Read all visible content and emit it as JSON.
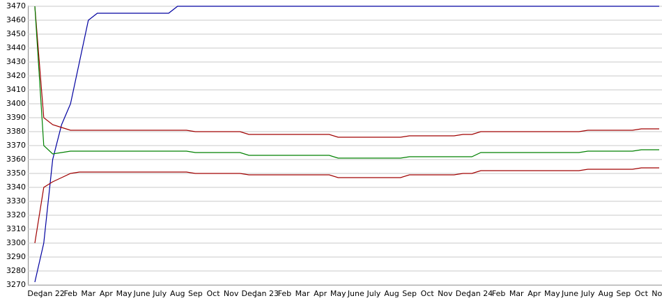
{
  "chart_data": {
    "type": "line",
    "categories": [
      "Dec",
      null,
      "Jan 22",
      null,
      "Feb",
      null,
      "Mar",
      null,
      "Apr",
      null,
      "May",
      null,
      "June",
      null,
      "July",
      null,
      "Aug",
      null,
      "Sep",
      null,
      "Oct",
      null,
      "Nov",
      null,
      "Dec",
      null,
      "Jan 23",
      null,
      "Feb",
      null,
      "Mar",
      null,
      "Apr",
      null,
      "May",
      null,
      "June",
      null,
      "July",
      null,
      "Aug",
      null,
      "Sep",
      null,
      "Oct",
      null,
      "Nov",
      null,
      "Dec",
      null,
      "Jan 24",
      null,
      "Feb",
      null,
      "Mar",
      null,
      "Apr",
      null,
      "May",
      null,
      "June",
      null,
      "July",
      null,
      "Aug",
      null,
      "Sep",
      null,
      "Oct",
      null,
      "Nov"
    ],
    "series": [
      {
        "color": "#0000a0",
        "values": [
          3272,
          3300,
          3360,
          3385,
          3400,
          3430,
          3460,
          3465,
          3465,
          3465,
          3465,
          3465,
          3465,
          3465,
          3465,
          3465,
          3470,
          3470,
          3470,
          3470,
          3470,
          3470,
          3470,
          3470,
          3470,
          3470,
          3470,
          3470,
          3470,
          3470,
          3470,
          3470,
          3470,
          3470,
          3470,
          3470,
          3470,
          3470,
          3470,
          3470,
          3470,
          3470,
          3470,
          3470,
          3470,
          3470,
          3470,
          3470,
          3470,
          3470,
          3470,
          3470,
          3470,
          3470,
          3470,
          3470,
          3470,
          3470,
          3470,
          3470,
          3470,
          3470,
          3470,
          3470,
          3470,
          3470,
          3470,
          3470,
          3470,
          3470,
          3470
        ]
      },
      {
        "color": "#a00000",
        "values": [
          3470,
          3390,
          3385,
          3383,
          3381,
          3381,
          3381,
          3381,
          3381,
          3381,
          3381,
          3381,
          3381,
          3381,
          3381,
          3381,
          3381,
          3381,
          3380,
          3380,
          3380,
          3380,
          3380,
          3380,
          3378,
          3378,
          3378,
          3378,
          3378,
          3378,
          3378,
          3378,
          3378,
          3378,
          3376,
          3376,
          3376,
          3376,
          3376,
          3376,
          3376,
          3376,
          3377,
          3377,
          3377,
          3377,
          3377,
          3377,
          3378,
          3378,
          3380,
          3380,
          3380,
          3380,
          3380,
          3380,
          3380,
          3380,
          3380,
          3380,
          3380,
          3380,
          3381,
          3381,
          3381,
          3381,
          3381,
          3381,
          3382,
          3382,
          3382
        ]
      },
      {
        "color": "#008000",
        "values": [
          3470,
          3370,
          3364,
          3365,
          3366,
          3366,
          3366,
          3366,
          3366,
          3366,
          3366,
          3366,
          3366,
          3366,
          3366,
          3366,
          3366,
          3366,
          3365,
          3365,
          3365,
          3365,
          3365,
          3365,
          3363,
          3363,
          3363,
          3363,
          3363,
          3363,
          3363,
          3363,
          3363,
          3363,
          3361,
          3361,
          3361,
          3361,
          3361,
          3361,
          3361,
          3361,
          3362,
          3362,
          3362,
          3362,
          3362,
          3362,
          3362,
          3362,
          3365,
          3365,
          3365,
          3365,
          3365,
          3365,
          3365,
          3365,
          3365,
          3365,
          3365,
          3365,
          3366,
          3366,
          3366,
          3366,
          3366,
          3366,
          3367,
          3367,
          3367
        ]
      },
      {
        "color": "#a00000",
        "values": [
          3300,
          3340,
          3344,
          3347,
          3350,
          3351,
          3351,
          3351,
          3351,
          3351,
          3351,
          3351,
          3351,
          3351,
          3351,
          3351,
          3351,
          3351,
          3350,
          3350,
          3350,
          3350,
          3350,
          3350,
          3349,
          3349,
          3349,
          3349,
          3349,
          3349,
          3349,
          3349,
          3349,
          3349,
          3347,
          3347,
          3347,
          3347,
          3347,
          3347,
          3347,
          3347,
          3349,
          3349,
          3349,
          3349,
          3349,
          3349,
          3350,
          3350,
          3352,
          3352,
          3352,
          3352,
          3352,
          3352,
          3352,
          3352,
          3352,
          3352,
          3352,
          3352,
          3353,
          3353,
          3353,
          3353,
          3353,
          3353,
          3354,
          3354,
          3354
        ]
      }
    ],
    "ylim": [
      3270,
      3470
    ],
    "yticks": [
      3270,
      3280,
      3290,
      3300,
      3310,
      3320,
      3330,
      3340,
      3350,
      3360,
      3370,
      3380,
      3390,
      3400,
      3410,
      3420,
      3430,
      3440,
      3450,
      3460,
      3470
    ],
    "grid": true
  }
}
